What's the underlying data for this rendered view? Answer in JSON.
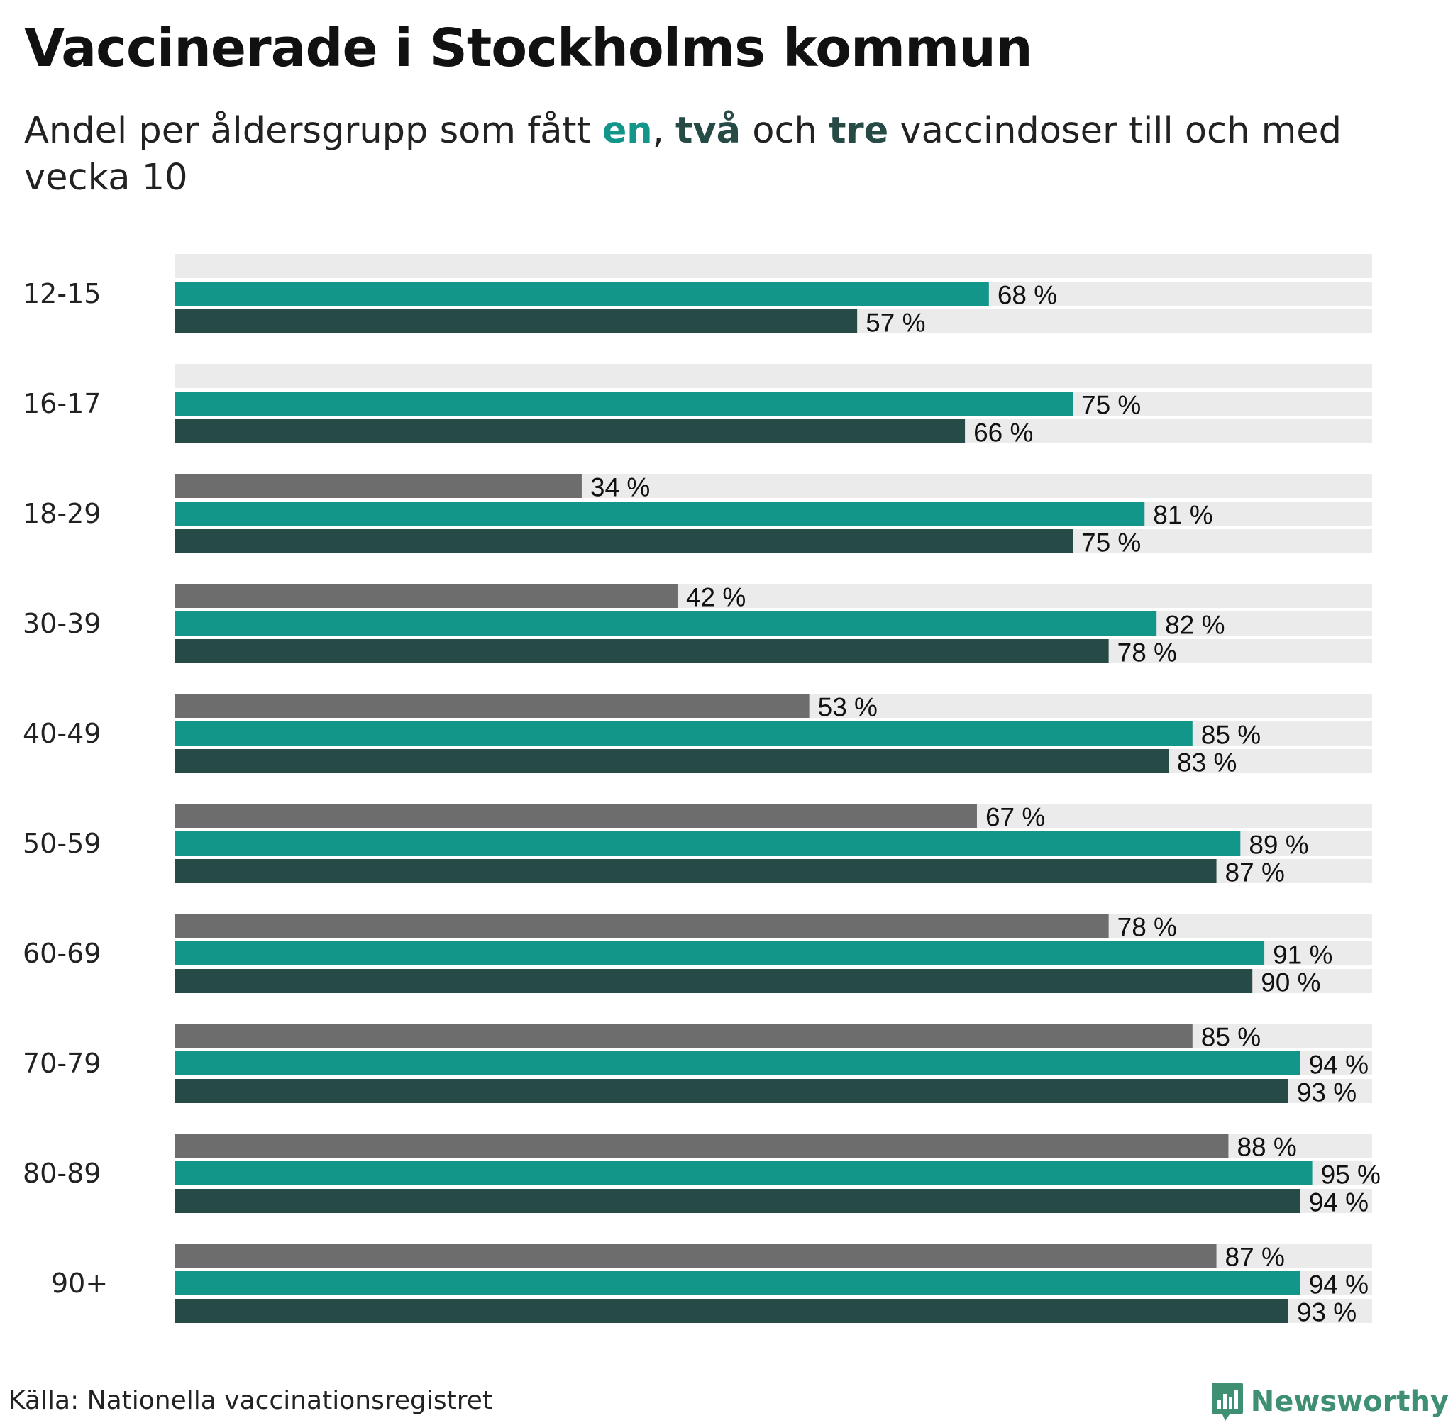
{
  "title": "Vaccinerade i Stockholms kommun",
  "subtitle": {
    "prefix": "Andel per åldersgrupp som fått ",
    "en": "en",
    "sep1": ", ",
    "tva": "två",
    "sep2": " och ",
    "tre": "tre",
    "suffix": " vaccindoser till och med vecka 10"
  },
  "source": "Källa: Nationella vaccinationsregistret",
  "brand": "Newsworthy",
  "colors": {
    "dose3": "#6d6d6d",
    "dose1": "#13968a",
    "dose2": "#264b47",
    "track": "#ebebeb"
  },
  "chart_data": {
    "type": "bar",
    "orientation": "horizontal",
    "title": "Vaccinerade i Stockholms kommun",
    "subtitle": "Andel per åldersgrupp som fått en, två och tre vaccindoser till och med vecka 10",
    "xlim": [
      0,
      100
    ],
    "unit": "%",
    "categories": [
      "12-15",
      "16-17",
      "18-29",
      "30-39",
      "40-49",
      "50-59",
      "60-69",
      "70-79",
      "80-89",
      "90+"
    ],
    "series": [
      {
        "name": "tre",
        "color": "#6d6d6d",
        "values": [
          null,
          null,
          34,
          42,
          53,
          67,
          78,
          85,
          88,
          87
        ]
      },
      {
        "name": "en",
        "color": "#13968a",
        "values": [
          68,
          75,
          81,
          82,
          85,
          89,
          91,
          94,
          95,
          94
        ]
      },
      {
        "name": "två",
        "color": "#264b47",
        "values": [
          57,
          66,
          75,
          78,
          83,
          87,
          90,
          93,
          94,
          93
        ]
      }
    ],
    "value_format": "{v} %"
  }
}
